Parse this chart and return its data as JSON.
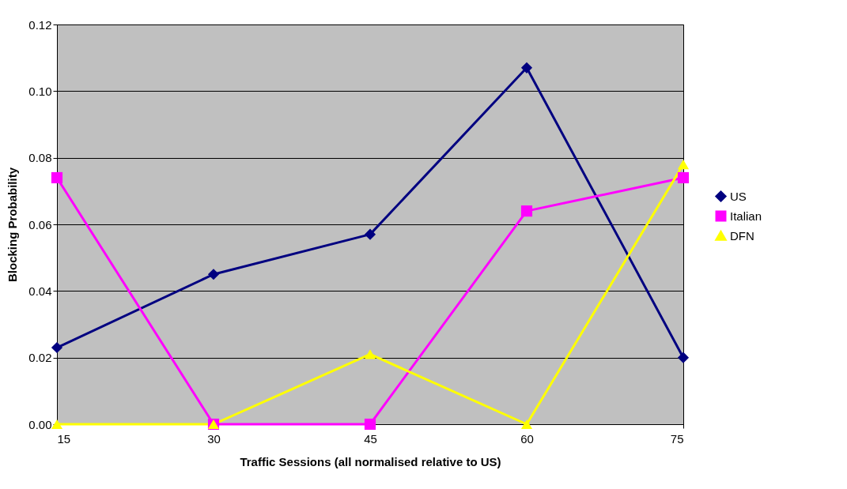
{
  "chart_data": {
    "type": "line",
    "xlabel": "Traffic Sessions (all normalised relative to US)",
    "ylabel": "Blocking Probability",
    "x": [
      15,
      30,
      45,
      60,
      75
    ],
    "xlim": [
      15,
      75
    ],
    "xticks": [
      15,
      30,
      45,
      60,
      75
    ],
    "ylim": [
      0,
      0.12
    ],
    "yticks": [
      {
        "value": 0,
        "label": "0.00"
      },
      {
        "value": 0.02,
        "label": "0.02"
      },
      {
        "value": 0.04,
        "label": "0.04"
      },
      {
        "value": 0.06,
        "label": "0.06"
      },
      {
        "value": 0.08,
        "label": "0.08"
      },
      {
        "value": 0.1,
        "label": "0.10"
      },
      {
        "value": 0.12,
        "label": "0.12"
      }
    ],
    "grid": "y",
    "legend": "right",
    "line_style": "solid",
    "series": [
      {
        "name": "US",
        "color": "#000080",
        "marker": "diamond",
        "values": [
          0.023,
          0.045,
          0.057,
          0.107,
          0.02
        ]
      },
      {
        "name": "Italian",
        "color": "#ff00ff",
        "marker": "square",
        "values": [
          0.074,
          0,
          0,
          0.064,
          0.074
        ]
      },
      {
        "name": "DFN",
        "color": "#ffff00",
        "marker": "triangle",
        "values": [
          0,
          0,
          0.021,
          0,
          0.078
        ]
      }
    ]
  }
}
